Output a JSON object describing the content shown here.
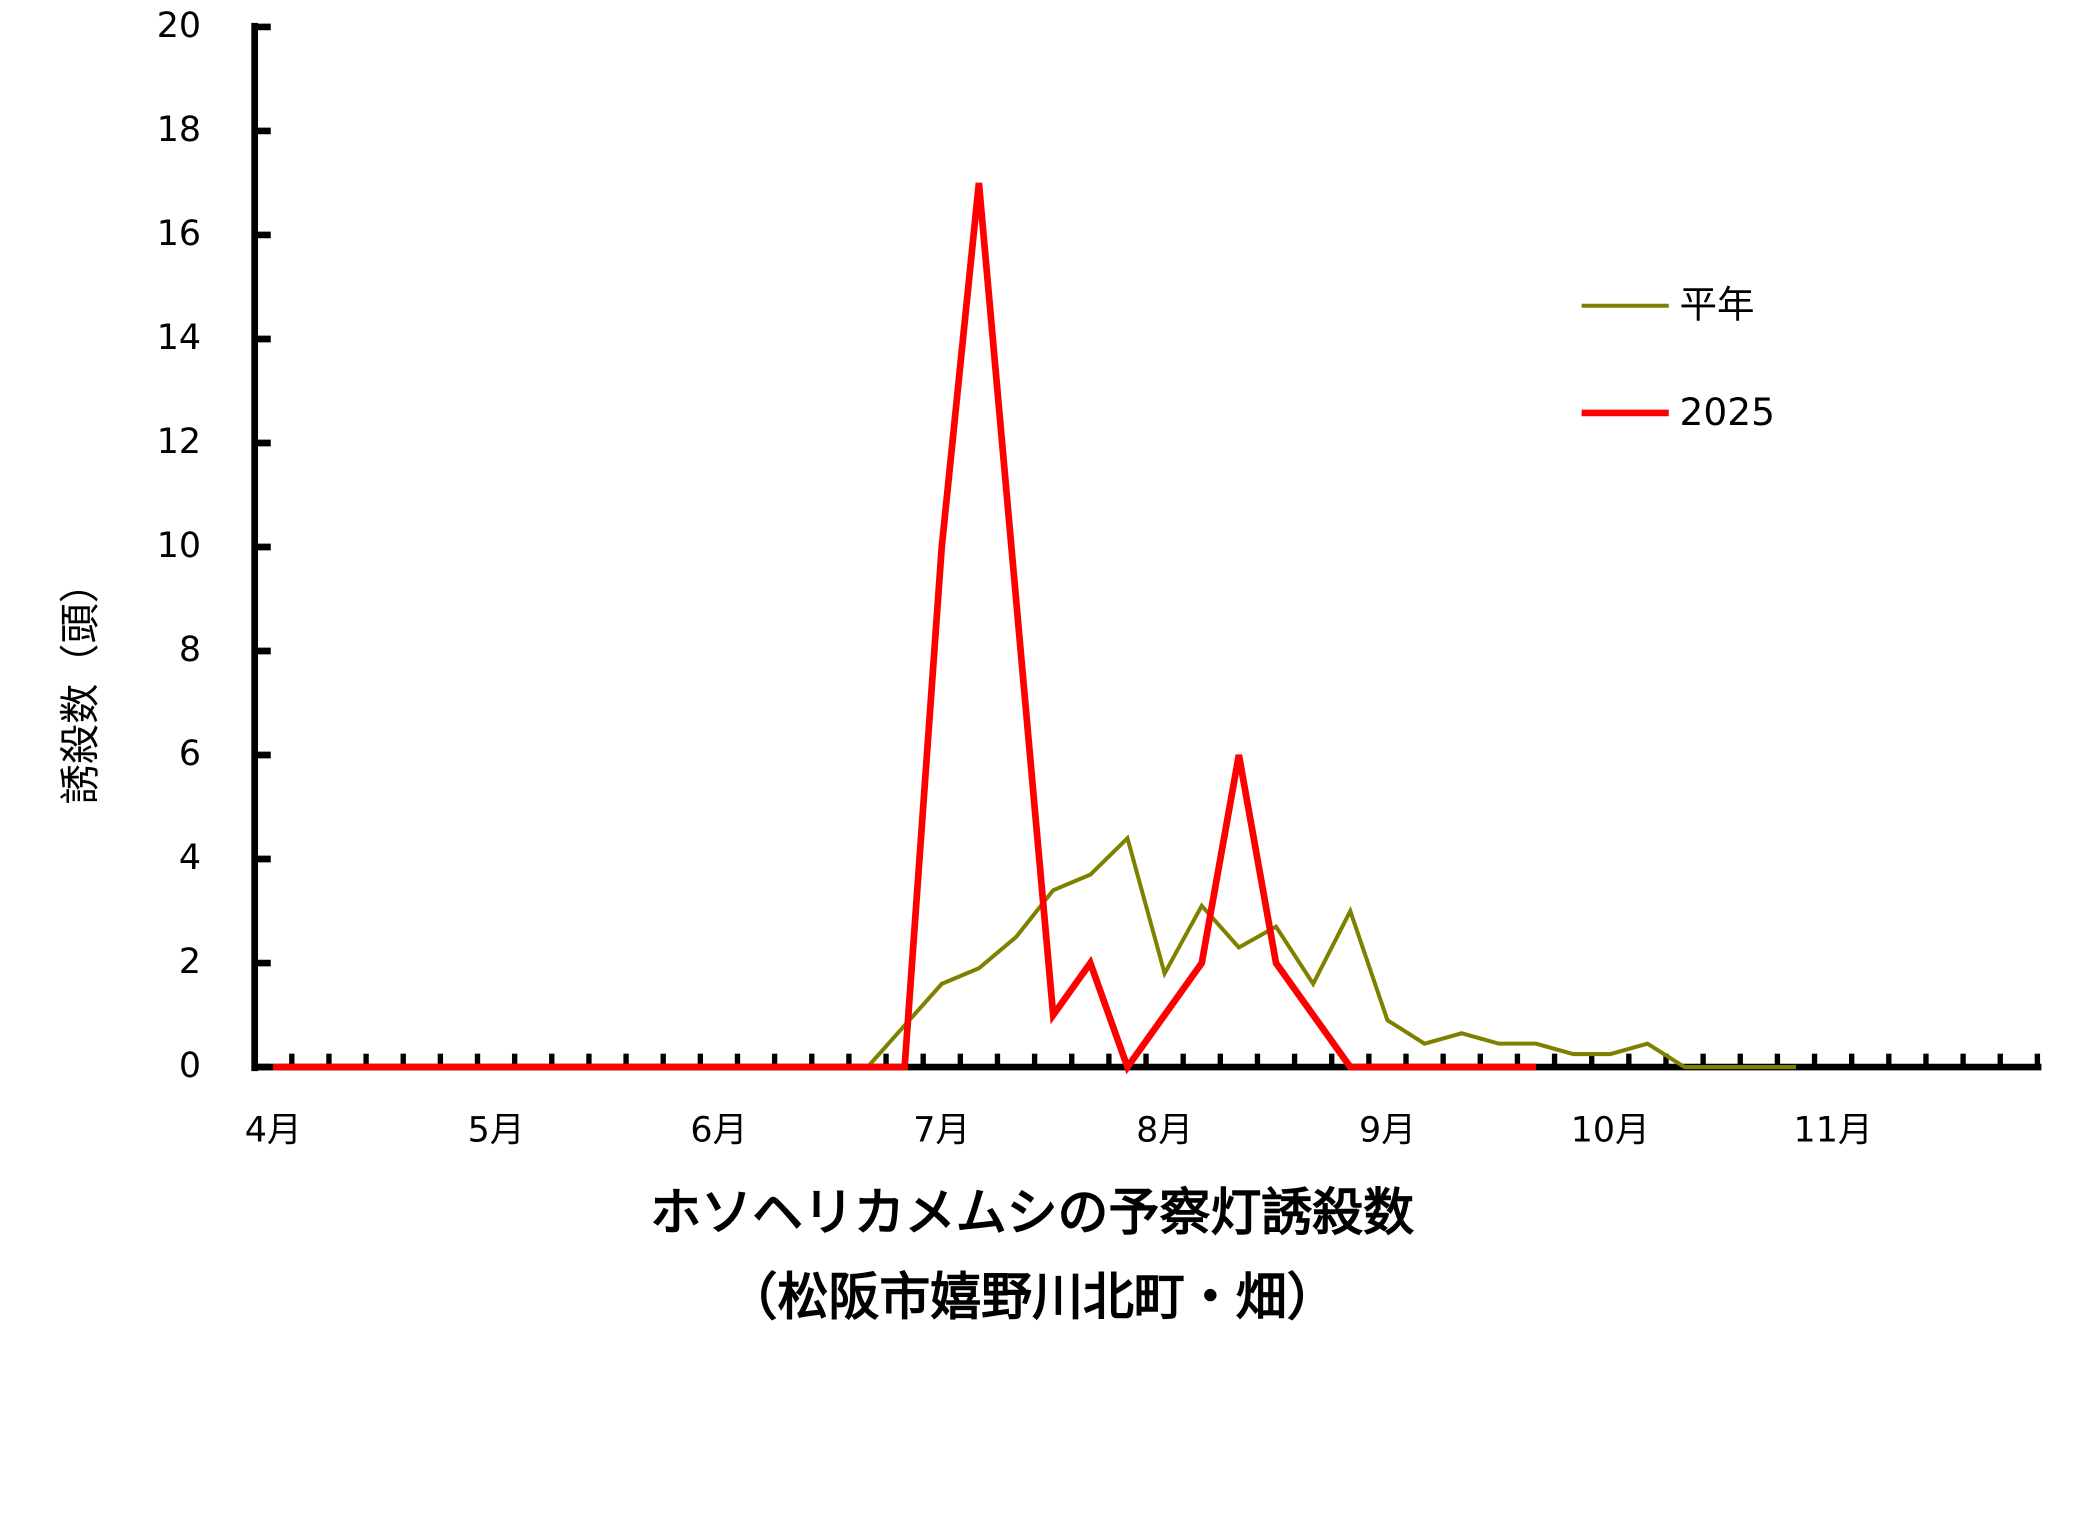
{
  "chart_data": {
    "type": "line",
    "title": "ホソヘリカメムシの予察灯誘殺数",
    "subtitle": "（松阪市嬉野川北町・畑）",
    "y_label": "誘殺数（頭）",
    "categories": [
      "4月",
      null,
      null,
      null,
      null,
      null,
      "5月",
      null,
      null,
      null,
      null,
      null,
      "6月",
      null,
      null,
      null,
      null,
      null,
      "7月",
      null,
      null,
      null,
      null,
      null,
      "8月",
      null,
      null,
      null,
      null,
      null,
      "9月",
      null,
      null,
      null,
      null,
      null,
      "10月",
      null,
      null,
      null,
      null,
      null,
      "11月",
      null,
      null,
      null,
      null,
      null
    ],
    "series": [
      {
        "name": "平年",
        "color": "#808000",
        "values": [
          0,
          0,
          0,
          0,
          0,
          0,
          0,
          0,
          0,
          0,
          0,
          0,
          0,
          0,
          0,
          0,
          0,
          0.8,
          1.6,
          1.9,
          2.5,
          3.4,
          3.7,
          4.4,
          1.8,
          3.1,
          2.3,
          2.7,
          1.6,
          3.0,
          0.9,
          0.45,
          0.65,
          0.45,
          0.45,
          0.25,
          0.25,
          0.45,
          0,
          0,
          0,
          0,
          null,
          null,
          null,
          null,
          null,
          null
        ]
      },
      {
        "name": "2025",
        "color": "#ff0000",
        "values": [
          0,
          0,
          0,
          0,
          0,
          0,
          0,
          0,
          0,
          0,
          0,
          0,
          0,
          0,
          0,
          0,
          0,
          0,
          10,
          17,
          9,
          1,
          2,
          0,
          1,
          2,
          6,
          2,
          1,
          0,
          0,
          0,
          0,
          0,
          0,
          null,
          null,
          null,
          null,
          null,
          null,
          null,
          null,
          null,
          null,
          null,
          null,
          null
        ]
      }
    ],
    "ylim": [
      0,
      20
    ],
    "yticks": [
      0,
      2,
      4,
      6,
      8,
      10,
      12,
      14,
      16,
      18,
      20
    ]
  }
}
